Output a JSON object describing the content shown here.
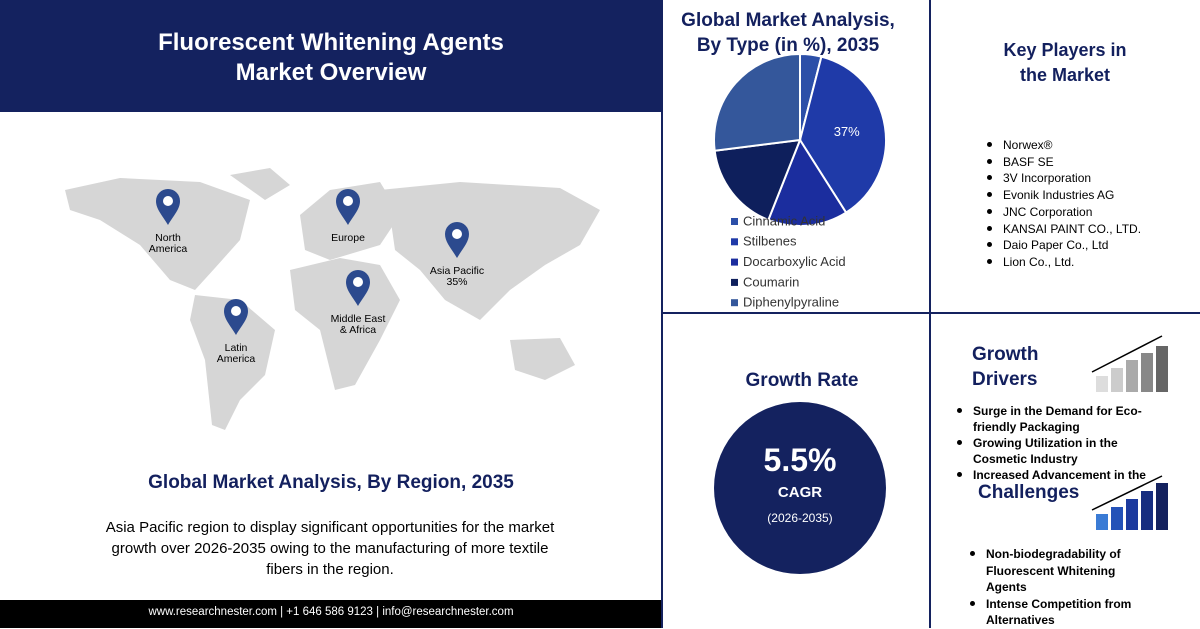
{
  "header": {
    "title_lines": [
      "Fluorescent Whitening Agents",
      "Market Overview"
    ]
  },
  "map": {
    "regions": [
      {
        "lines": [
          "North",
          "America"
        ]
      },
      {
        "lines": [
          "Europe"
        ]
      },
      {
        "lines": [
          "Asia Pacific",
          "35%"
        ]
      },
      {
        "lines": [
          "Middle East",
          "& Africa"
        ]
      },
      {
        "lines": [
          "Latin",
          "America"
        ]
      }
    ],
    "title": "Global Market Analysis, By Region, 2035",
    "description": "Asia Pacific region to display significant opportunities for the market growth over 2026-2035 owing to the manufacturing of more textile fibers in the region."
  },
  "footer": {
    "text": "www.researchnester.com | +1 646 586 9123 | info@researchnester.com"
  },
  "chart_data": {
    "type": "pie",
    "title": "Global Market Analysis, By Type (in %), 2035",
    "categories": [
      "Cinnamic Acid",
      "Stilbenes",
      "Docarboxylic Acid",
      "Coumarin",
      "Diphenylpyraline"
    ],
    "values": [
      4,
      37,
      15,
      17,
      27
    ],
    "value_labels": [
      null,
      "37%",
      null,
      null,
      null
    ],
    "colors": [
      "#2c4fa8",
      "#1f3aa8",
      "#1b2d9e",
      "#0e1f5c",
      "#34579b"
    ]
  },
  "key_players": {
    "title": "Key Players in the Market",
    "items": [
      "Norwex®",
      "BASF SE",
      "3V Incorporation",
      "Evonik Industries AG",
      "JNC Corporation",
      "KANSAI PAINT CO., LTD.",
      "Daio Paper Co., Ltd",
      "Lion Co., Ltd."
    ]
  },
  "growth_rate": {
    "title": "Growth Rate",
    "value": "5.5%",
    "label": "CAGR",
    "period": "(2026-2035)"
  },
  "growth_drivers": {
    "title": "Growth Drivers",
    "items": [
      "Surge in the Demand for Eco-friendly Packaging",
      "Growing Utilization in the Cosmetic Industry",
      "Increased Advancement in the"
    ]
  },
  "challenges": {
    "title": "Challenges",
    "items": [
      "Non-biodegradability of Fluorescent Whitening Agents",
      "Intense Competition from Alternatives"
    ]
  }
}
